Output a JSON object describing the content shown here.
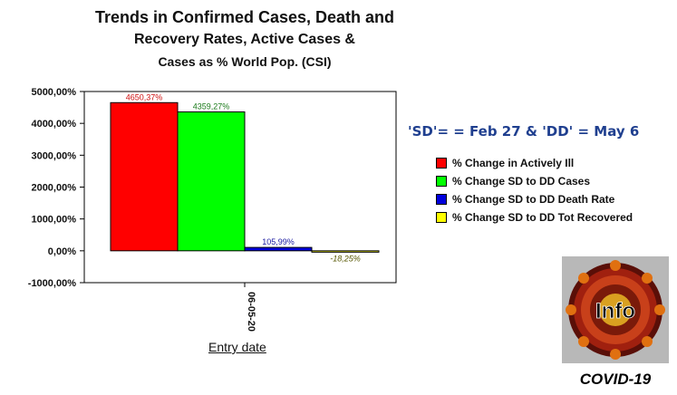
{
  "title": {
    "line1": "Trends in Confirmed Cases, Death and",
    "line2": "Recovery Rates, Active Cases &",
    "line3": "Cases as % World Pop. (CSI)"
  },
  "note": "'SD'= = Feb 27 & 'DD' = May 6",
  "logo": {
    "text": "Info",
    "caption": "COVID-19"
  },
  "chart_data": {
    "type": "bar",
    "categories": [
      "06-05-20"
    ],
    "xlabel": "Entry date",
    "ylabel": "",
    "ylim": [
      -1000,
      5000
    ],
    "yticks": [
      5000,
      4000,
      3000,
      2000,
      1000,
      0,
      -1000
    ],
    "ytick_labels": [
      "5000,00%",
      "4000,00%",
      "3000,00%",
      "2000,00%",
      "1000,00%",
      "0,00%",
      "-1000,00%"
    ],
    "grid": false,
    "legend_position": "right",
    "series": [
      {
        "name": "% Change in Actively Ill",
        "values": [
          4650.37
        ],
        "label": "4650,37%",
        "color": "#ff0000",
        "label_color": "#d01010"
      },
      {
        "name": "% Change SD to DD Cases",
        "values": [
          4359.27
        ],
        "label": "4359,27%",
        "color": "#00ff00",
        "label_color": "#1a7a1a"
      },
      {
        "name": "% Change SD to DD Death Rate",
        "values": [
          105.99
        ],
        "label": "105,99%",
        "color": "#0000dd",
        "label_color": "#1a1aa0"
      },
      {
        "name": "% Change SD to DD Tot Recovered",
        "values": [
          -18.25
        ],
        "label": "-18,25%",
        "color": "#ffff00",
        "label_color": "#555500"
      }
    ]
  }
}
